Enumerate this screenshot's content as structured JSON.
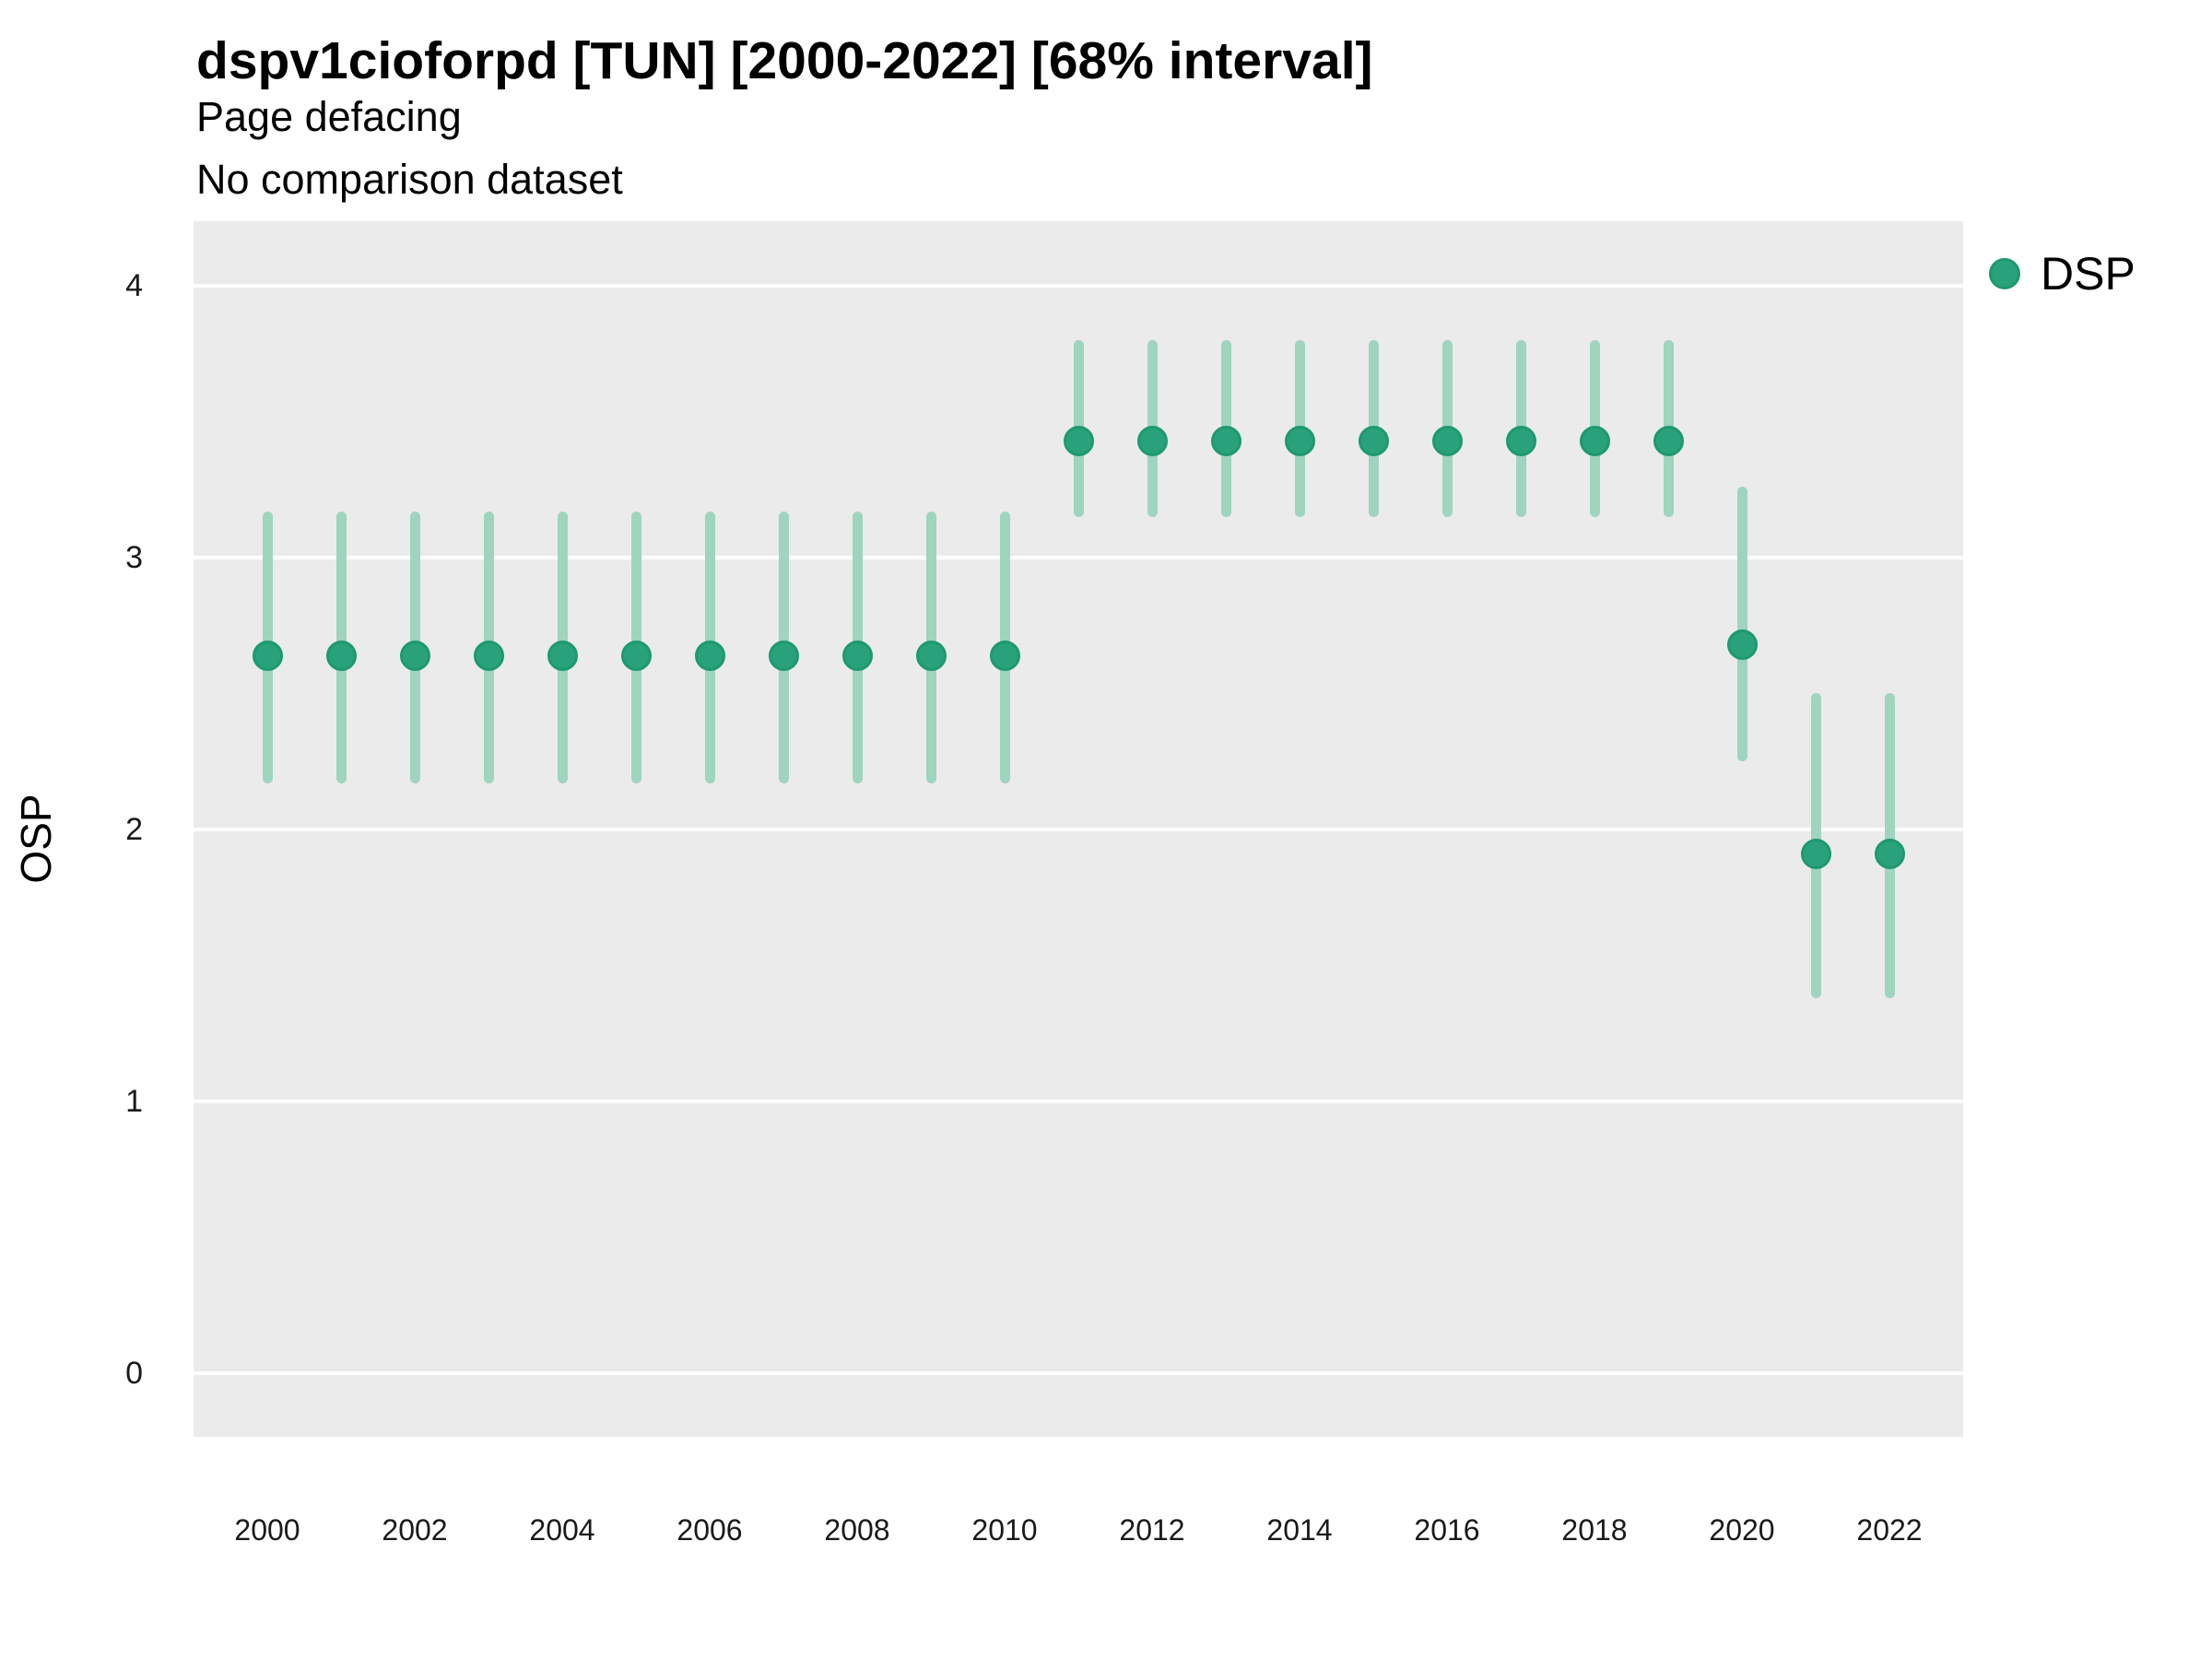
{
  "header": {
    "title": "dspv1cioforpd [TUN] [2000-2022] [68% interval]",
    "subtitle": "Page defacing",
    "note": "No comparison dataset"
  },
  "axes": {
    "y_label": "OSP",
    "y_tick_labels": [
      "0",
      "1",
      "2",
      "3",
      "4"
    ],
    "x_tick_labels": [
      "2000",
      "2002",
      "2004",
      "2006",
      "2008",
      "2010",
      "2012",
      "2014",
      "2016",
      "2018",
      "2020",
      "2022"
    ]
  },
  "legend": {
    "label": "DSP"
  },
  "colors": {
    "panel_background": "#EBEBEB",
    "gridline": "#FFFFFF",
    "point_fill": "#29A27C",
    "point_ring": "#1D9970",
    "interval_line": "#9FD4BF",
    "text": "#000000",
    "tick_text": "#1A1A1A"
  },
  "chart_data": {
    "type": "scatter",
    "subtype": "pointrange",
    "title": "dspv1cioforpd [TUN] [2000-2022] [68% interval]",
    "subtitle": "Page defacing",
    "annotation": "No comparison dataset",
    "xlabel": "",
    "ylabel": "OSP",
    "interval": "68%",
    "legend_position": "right",
    "grid": "horizontal-major-only",
    "x_domain": [
      1999,
      2023
    ],
    "y_domain": [
      -0.234,
      4.237
    ],
    "x_ticks": [
      2000,
      2002,
      2004,
      2006,
      2008,
      2010,
      2012,
      2014,
      2016,
      2018,
      2020,
      2022
    ],
    "y_ticks": [
      0,
      1,
      2,
      3,
      4
    ],
    "series": [
      {
        "name": "DSP",
        "points": [
          {
            "year": 2000,
            "mean": 2.64,
            "lo": 2.17,
            "hi": 3.17
          },
          {
            "year": 2001,
            "mean": 2.64,
            "lo": 2.17,
            "hi": 3.17
          },
          {
            "year": 2002,
            "mean": 2.64,
            "lo": 2.17,
            "hi": 3.17
          },
          {
            "year": 2003,
            "mean": 2.64,
            "lo": 2.17,
            "hi": 3.17
          },
          {
            "year": 2004,
            "mean": 2.64,
            "lo": 2.17,
            "hi": 3.17
          },
          {
            "year": 2005,
            "mean": 2.64,
            "lo": 2.17,
            "hi": 3.17
          },
          {
            "year": 2006,
            "mean": 2.64,
            "lo": 2.17,
            "hi": 3.17
          },
          {
            "year": 2007,
            "mean": 2.64,
            "lo": 2.17,
            "hi": 3.17
          },
          {
            "year": 2008,
            "mean": 2.64,
            "lo": 2.17,
            "hi": 3.17
          },
          {
            "year": 2009,
            "mean": 2.64,
            "lo": 2.17,
            "hi": 3.17
          },
          {
            "year": 2010,
            "mean": 2.64,
            "lo": 2.17,
            "hi": 3.17
          },
          {
            "year": 2011,
            "mean": 3.43,
            "lo": 3.15,
            "hi": 3.8
          },
          {
            "year": 2012,
            "mean": 3.43,
            "lo": 3.15,
            "hi": 3.8
          },
          {
            "year": 2013,
            "mean": 3.43,
            "lo": 3.15,
            "hi": 3.8
          },
          {
            "year": 2014,
            "mean": 3.43,
            "lo": 3.15,
            "hi": 3.8
          },
          {
            "year": 2015,
            "mean": 3.43,
            "lo": 3.15,
            "hi": 3.8
          },
          {
            "year": 2016,
            "mean": 3.43,
            "lo": 3.15,
            "hi": 3.8
          },
          {
            "year": 2017,
            "mean": 3.43,
            "lo": 3.15,
            "hi": 3.8
          },
          {
            "year": 2018,
            "mean": 3.43,
            "lo": 3.15,
            "hi": 3.8
          },
          {
            "year": 2019,
            "mean": 3.43,
            "lo": 3.15,
            "hi": 3.8
          },
          {
            "year": 2020,
            "mean": 2.68,
            "lo": 2.25,
            "hi": 3.26
          },
          {
            "year": 2021,
            "mean": 1.91,
            "lo": 1.38,
            "hi": 2.5
          },
          {
            "year": 2022,
            "mean": 1.91,
            "lo": 1.38,
            "hi": 2.5
          }
        ]
      }
    ]
  }
}
